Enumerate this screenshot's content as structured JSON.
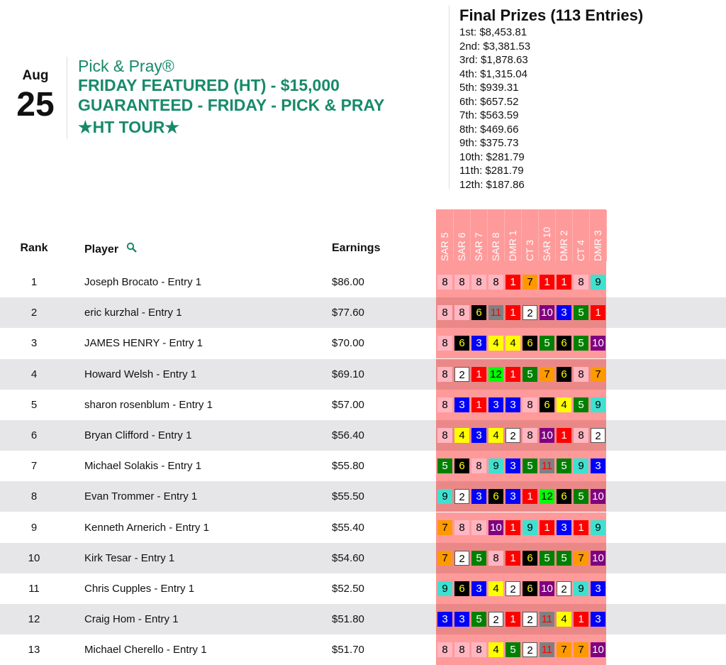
{
  "date": {
    "month": "Aug",
    "day": "25"
  },
  "contest": {
    "brand": "Pick & Pray®",
    "line1": "FRIDAY FEATURED (HT) - $15,000",
    "line2": "GUARANTEED - FRIDAY - PICK & PRAY",
    "line3": "★HT TOUR★"
  },
  "prizes": {
    "title": "Final Prizes (113 Entries)",
    "items": [
      "1st: $8,453.81",
      "2nd: $3,381.53",
      "3rd: $1,878.63",
      "4th: $1,315.04",
      "5th: $939.31",
      "6th: $657.52",
      "7th: $563.59",
      "8th: $469.66",
      "9th: $375.73",
      "10th: $281.79",
      "11th: $281.79",
      "12th: $187.86"
    ]
  },
  "table": {
    "headers": {
      "rank": "Rank",
      "player": "Player",
      "earnings": "Earnings"
    },
    "search_icon": "magnifier-icon",
    "races": [
      "SAR 5",
      "SAR 6",
      "SAR 7",
      "SAR 8",
      "DMR 1",
      "CT 3",
      "SAR 10",
      "DMR 2",
      "CT 4",
      "DMR 3"
    ],
    "rows": [
      {
        "rank": "1",
        "player": "Joseph Brocato - Entry 1",
        "earnings": "$86.00",
        "picks": [
          8,
          8,
          8,
          8,
          1,
          7,
          1,
          1,
          8,
          9
        ]
      },
      {
        "rank": "2",
        "player": "eric kurzhal - Entry 1",
        "earnings": "$77.60",
        "picks": [
          8,
          8,
          6,
          11,
          1,
          2,
          10,
          3,
          5,
          1
        ]
      },
      {
        "rank": "3",
        "player": "JAMES HENRY - Entry 1",
        "earnings": "$70.00",
        "picks": [
          8,
          6,
          3,
          4,
          4,
          6,
          5,
          6,
          5,
          10
        ]
      },
      {
        "rank": "4",
        "player": "Howard Welsh - Entry 1",
        "earnings": "$69.10",
        "picks": [
          8,
          2,
          1,
          12,
          1,
          5,
          7,
          6,
          8,
          7
        ]
      },
      {
        "rank": "5",
        "player": "sharon rosenblum - Entry 1",
        "earnings": "$57.00",
        "picks": [
          8,
          3,
          1,
          3,
          3,
          8,
          6,
          4,
          5,
          9
        ]
      },
      {
        "rank": "6",
        "player": "Bryan Clifford - Entry 1",
        "earnings": "$56.40",
        "picks": [
          8,
          4,
          3,
          4,
          2,
          8,
          10,
          1,
          8,
          2
        ]
      },
      {
        "rank": "7",
        "player": "Michael Solakis - Entry 1",
        "earnings": "$55.80",
        "picks": [
          5,
          6,
          8,
          9,
          3,
          5,
          11,
          5,
          9,
          3
        ]
      },
      {
        "rank": "8",
        "player": "Evan Trommer - Entry 1",
        "earnings": "$55.50",
        "picks": [
          9,
          2,
          3,
          6,
          3,
          1,
          12,
          6,
          5,
          10
        ]
      },
      {
        "rank": "9",
        "player": "Kenneth Arnerich - Entry 1",
        "earnings": "$55.40",
        "picks": [
          7,
          8,
          8,
          10,
          1,
          9,
          1,
          3,
          1,
          9
        ]
      },
      {
        "rank": "10",
        "player": "Kirk Tesar - Entry 1",
        "earnings": "$54.60",
        "picks": [
          7,
          2,
          5,
          8,
          1,
          6,
          5,
          5,
          7,
          10
        ]
      },
      {
        "rank": "11",
        "player": "Chris Cupples - Entry 1",
        "earnings": "$52.50",
        "picks": [
          9,
          6,
          3,
          4,
          2,
          6,
          10,
          2,
          9,
          3
        ]
      },
      {
        "rank": "12",
        "player": "Craig Hom - Entry 1",
        "earnings": "$51.80",
        "picks": [
          3,
          3,
          5,
          2,
          1,
          2,
          11,
          4,
          1,
          3
        ]
      },
      {
        "rank": "13",
        "player": "Michael Cherello - Entry 1",
        "earnings": "$51.70",
        "picks": [
          8,
          8,
          8,
          4,
          5,
          2,
          11,
          7,
          7,
          10
        ]
      }
    ]
  },
  "colors": {
    "accent": "#178a6a",
    "saddle": {
      "1": [
        "#ff0000",
        "#ffffff"
      ],
      "2": [
        "#ffffff",
        "#000000"
      ],
      "3": [
        "#0000ff",
        "#ffffff"
      ],
      "4": [
        "#ffff00",
        "#000000"
      ],
      "5": [
        "#008000",
        "#ffffff"
      ],
      "6": [
        "#000000",
        "#ffff00"
      ],
      "7": [
        "#ff9900",
        "#000000"
      ],
      "8": [
        "#ffb6c1",
        "#000000"
      ],
      "9": [
        "#40e0d0",
        "#000000"
      ],
      "10": [
        "#800080",
        "#ffffff"
      ],
      "11": [
        "#808080",
        "#ff0000"
      ],
      "12": [
        "#00ff00",
        "#000000"
      ]
    }
  }
}
